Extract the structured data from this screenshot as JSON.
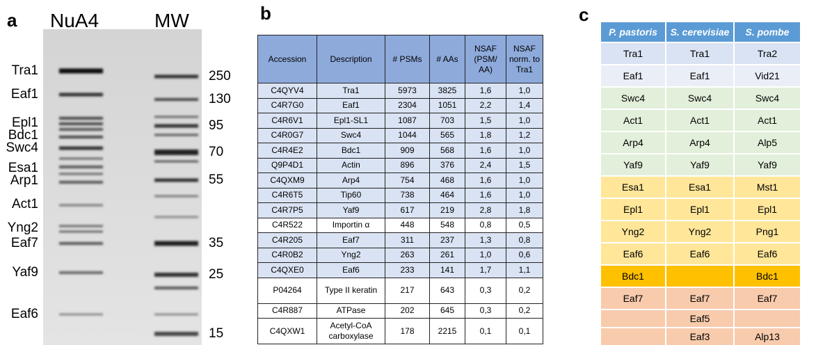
{
  "panel_a": {
    "label": "a",
    "lanes": [
      "NuA4",
      "MW"
    ],
    "bands": [
      "Tra1",
      "Eaf1",
      "Epl1",
      "Bdc1",
      "Swc4",
      "Esa1",
      "Arp1",
      "Act1",
      "Yng2",
      "Eaf7",
      "Yaf9",
      "Eaf6"
    ],
    "markers": [
      "250",
      "130",
      "95",
      "70",
      "55",
      "35",
      "25",
      "15"
    ]
  },
  "panel_b": {
    "label": "b",
    "table": {
      "header": [
        "Accession",
        "Description",
        "# PSMs",
        "# AAs",
        "NSAF (PSM/ AA)",
        "NSAF norm. to Tra1"
      ],
      "rows": [
        [
          "C4QYV4",
          "Tra1",
          "5973",
          "3825",
          "1,6",
          "1,0"
        ],
        [
          "C4R7G0",
          "Eaf1",
          "2304",
          "1051",
          "2,2",
          "1,4"
        ],
        [
          "C4R6V1",
          "Epl1-SL1",
          "1087",
          "703",
          "1,5",
          "1,0"
        ],
        [
          "C4R0G7",
          "Swc4",
          "1044",
          "565",
          "1,8",
          "1,2"
        ],
        [
          "C4R4E2",
          "Bdc1",
          "909",
          "568",
          "1,6",
          "1,0"
        ],
        [
          "Q9P4D1",
          "Actin",
          "896",
          "376",
          "2,4",
          "1,5"
        ],
        [
          "C4QXM9",
          "Arp4",
          "754",
          "468",
          "1,6",
          "1,0"
        ],
        [
          "C4R6T5",
          "Tip60",
          "738",
          "464",
          "1,6",
          "1,0"
        ],
        [
          "C4R7P5",
          "Yaf9",
          "617",
          "219",
          "2,8",
          "1,8"
        ],
        [
          "C4R522",
          "Importin α",
          "448",
          "548",
          "0,8",
          "0,5"
        ],
        [
          "C4R205",
          "Eaf7",
          "311",
          "237",
          "1,3",
          "0,8"
        ],
        [
          "C4R0B2",
          "Yng2",
          "263",
          "261",
          "1,0",
          "0,6"
        ],
        [
          "C4QXE0",
          "Eaf6",
          "233",
          "141",
          "1,7",
          "1,1"
        ],
        [
          "P04264",
          "Type II keratin",
          "217",
          "643",
          "0,3",
          "0,2"
        ],
        [
          "C4R887",
          "ATPase",
          "202",
          "645",
          "0,3",
          "0,2"
        ],
        [
          "C4QXW1",
          "Acetyl-CoA carboxylase",
          "178",
          "2215",
          "0,1",
          "0,1"
        ]
      ]
    }
  },
  "panel_c": {
    "label": "c",
    "table": {
      "header": [
        "P. pastoris",
        "S. cerevisiae",
        "S. pombe"
      ],
      "rows": [
        [
          "Tra1",
          "Tra1",
          "Tra2"
        ],
        [
          "Eaf1",
          "Eaf1",
          "Vid21"
        ],
        [
          "Swc4",
          "Swc4",
          "Swc4"
        ],
        [
          "Act1",
          "Act1",
          "Act1"
        ],
        [
          "Arp4",
          "Arp4",
          "Alp5"
        ],
        [
          "Yaf9",
          "Yaf9",
          "Yaf9"
        ],
        [
          "Esa1",
          "Esa1",
          "Mst1"
        ],
        [
          "Epl1",
          "Epl1",
          "Epl1"
        ],
        [
          "Yng2",
          "Yng2",
          "Png1"
        ],
        [
          "Eaf6",
          "Eaf6",
          "Eaf6"
        ],
        [
          "Bdc1",
          null,
          "Bdc1"
        ],
        [
          "Eaf7",
          "Eaf7",
          "Eaf7"
        ],
        [
          null,
          "Eaf5",
          null
        ],
        [
          null,
          "Eaf3",
          "Alp13"
        ]
      ]
    }
  }
}
